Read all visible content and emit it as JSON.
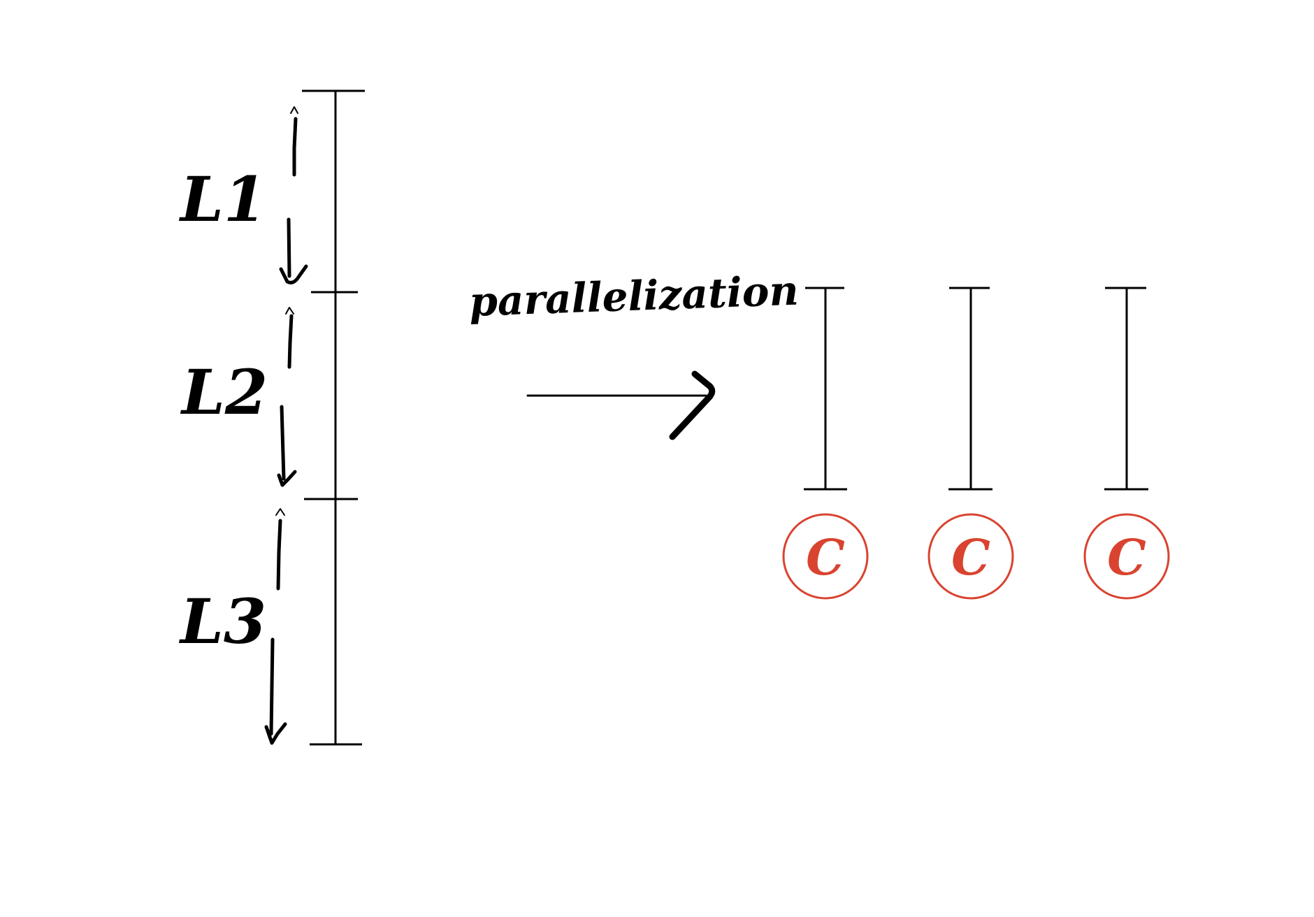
{
  "labels": {
    "segment_1": "L1",
    "segment_2": "L2",
    "segment_3": "L3",
    "arrow_label": "parallelization",
    "circle_letter": "C"
  },
  "colors": {
    "ink": "#000000",
    "accent": "#d9432f",
    "background": "#ffffff"
  }
}
